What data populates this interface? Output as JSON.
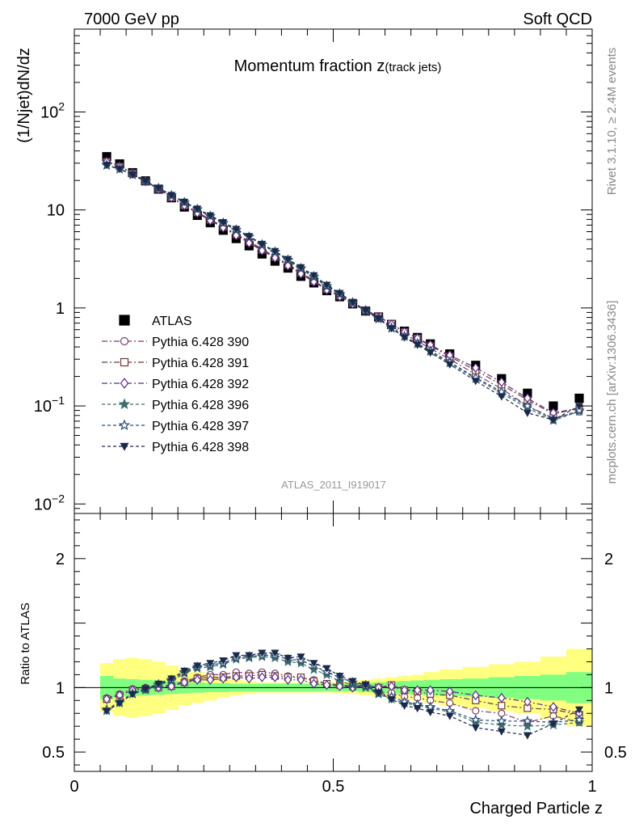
{
  "header": {
    "left": "7000 GeV pp",
    "right": "Soft QCD",
    "title": "Momentum fraction ",
    "title_var": "z",
    "title_sub": "(track jets)",
    "analysis_id": "ATLAS_2011_I919017",
    "rivet": "Rivet 3.1.10, ≥ 2.4M events",
    "mcplots": "mcplots.cern.ch [arXiv:1306.3436]"
  },
  "chart_data": [
    {
      "type": "scatter",
      "panel": "main",
      "ylabel": "(1/Njet)dN/dz",
      "yscale": "log",
      "ylim": [
        0.008,
        700
      ],
      "xlim": [
        0,
        1
      ],
      "y_ticks": [
        {
          "value": 0.01,
          "base": "10",
          "exp": "−2"
        },
        {
          "value": 0.1,
          "base": "10",
          "exp": "−1"
        },
        {
          "value": 1,
          "base": "1",
          "exp": ""
        },
        {
          "value": 10,
          "base": "10",
          "exp": ""
        },
        {
          "value": 100,
          "base": "10",
          "exp": "2"
        }
      ],
      "x": [
        0.0625,
        0.0875,
        0.1125,
        0.1375,
        0.1625,
        0.1875,
        0.2125,
        0.2375,
        0.2625,
        0.2875,
        0.3125,
        0.3375,
        0.3625,
        0.3875,
        0.4125,
        0.4375,
        0.4625,
        0.4875,
        0.5125,
        0.5375,
        0.5625,
        0.5875,
        0.6125,
        0.6375,
        0.6625,
        0.6875,
        0.725,
        0.775,
        0.825,
        0.875,
        0.925,
        0.975
      ],
      "legend_position": "middle-left",
      "series": [
        {
          "name": "ATLAS",
          "color": "#000000",
          "marker": "square-filled",
          "values": [
            35,
            29.5,
            24,
            19.8,
            16.3,
            13.3,
            10.7,
            8.8,
            7.4,
            6.2,
            5.1,
            4.3,
            3.55,
            3.0,
            2.55,
            2.1,
            1.8,
            1.5,
            1.3,
            1.1,
            0.93,
            0.81,
            0.68,
            0.58,
            0.5,
            0.43,
            0.34,
            0.26,
            0.19,
            0.135,
            0.1,
            0.12
          ]
        },
        {
          "name": "Pythia 6.428 390",
          "color": "#7a3f6e",
          "marker": "circle-open",
          "dash": "7,3,2,3",
          "values": [
            31.5,
            28,
            23.8,
            19.8,
            16.5,
            13.5,
            11.2,
            9.5,
            8.0,
            6.8,
            5.7,
            4.8,
            4.0,
            3.35,
            2.8,
            2.3,
            1.9,
            1.55,
            1.33,
            1.1,
            0.94,
            0.78,
            0.65,
            0.54,
            0.46,
            0.385,
            0.3,
            0.21,
            0.15,
            0.1,
            0.075,
            0.087
          ]
        },
        {
          "name": "Pythia 6.428 391",
          "color": "#6e3a3a",
          "marker": "square-open",
          "dash": "7,3,2,3",
          "values": [
            31,
            27.7,
            23.6,
            19.6,
            16.3,
            13.4,
            11.1,
            9.4,
            7.9,
            6.7,
            5.6,
            4.7,
            3.9,
            3.3,
            2.75,
            2.27,
            1.88,
            1.55,
            1.33,
            1.12,
            0.95,
            0.82,
            0.69,
            0.57,
            0.49,
            0.41,
            0.32,
            0.23,
            0.165,
            0.115,
            0.083,
            0.094
          ]
        },
        {
          "name": "Pythia 6.428 392",
          "color": "#5a2d8a",
          "marker": "diamond-open",
          "dash": "7,3,2,3",
          "values": [
            31,
            27.7,
            23.6,
            19.6,
            16.3,
            13.4,
            11.1,
            9.3,
            7.8,
            6.6,
            5.5,
            4.6,
            3.85,
            3.25,
            2.7,
            2.23,
            1.85,
            1.53,
            1.31,
            1.1,
            0.95,
            0.81,
            0.68,
            0.57,
            0.49,
            0.42,
            0.33,
            0.245,
            0.175,
            0.12,
            0.085,
            0.095
          ]
        },
        {
          "name": "Pythia 6.428 396",
          "color": "#3c6e6e",
          "marker": "star-filled",
          "dash": "4,3",
          "values": [
            28.5,
            26,
            22.8,
            19.5,
            16.6,
            14,
            11.9,
            10.1,
            8.6,
            7.3,
            6.2,
            5.3,
            4.4,
            3.7,
            3.05,
            2.5,
            2.05,
            1.65,
            1.37,
            1.12,
            0.93,
            0.77,
            0.62,
            0.51,
            0.43,
            0.36,
            0.275,
            0.19,
            0.135,
            0.095,
            0.071,
            0.088
          ]
        },
        {
          "name": "Pythia 6.428 397",
          "color": "#2d4a6e",
          "marker": "star-open",
          "dash": "4,3",
          "values": [
            28.8,
            26.2,
            22.9,
            19.6,
            16.7,
            14.1,
            12,
            10.2,
            8.7,
            7.4,
            6.3,
            5.35,
            4.45,
            3.75,
            3.1,
            2.55,
            2.1,
            1.68,
            1.4,
            1.14,
            0.94,
            0.78,
            0.63,
            0.515,
            0.435,
            0.365,
            0.28,
            0.195,
            0.14,
            0.1,
            0.073,
            0.09
          ]
        },
        {
          "name": "Pythia 6.428 398",
          "color": "#1a2a4a",
          "marker": "triangle-down-filled",
          "dash": "4,3",
          "values": [
            28.8,
            26.2,
            22.9,
            19.7,
            16.8,
            14.2,
            12.1,
            10.3,
            8.8,
            7.5,
            6.4,
            5.4,
            4.5,
            3.8,
            3.15,
            2.6,
            2.15,
            1.72,
            1.42,
            1.15,
            0.95,
            0.78,
            0.62,
            0.5,
            0.42,
            0.35,
            0.265,
            0.18,
            0.125,
            0.085,
            0.072,
            0.1
          ]
        }
      ]
    },
    {
      "type": "scatter",
      "panel": "ratio",
      "ylabel": "Ratio to ATLAS",
      "xlabel": "Charged Particle z",
      "ylim": [
        0.35,
        2.35
      ],
      "xlim": [
        0,
        1
      ],
      "y_ticks": [
        0.5,
        1,
        2
      ],
      "x_ticks": [
        {
          "value": 0,
          "label": "0"
        },
        {
          "value": 0.5,
          "label": "0.5"
        },
        {
          "value": 1,
          "label": "1"
        }
      ],
      "reference_line": 1,
      "band_green_halfwidth": [
        0.09,
        0.07,
        0.065,
        0.06,
        0.055,
        0.05,
        0.045,
        0.04,
        0.035,
        0.035,
        0.03,
        0.03,
        0.03,
        0.03,
        0.03,
        0.03,
        0.03,
        0.03,
        0.03,
        0.03,
        0.035,
        0.04,
        0.045,
        0.05,
        0.055,
        0.06,
        0.065,
        0.07,
        0.08,
        0.09,
        0.1,
        0.12
      ],
      "band_yellow_halfwidth": [
        0.19,
        0.22,
        0.23,
        0.22,
        0.2,
        0.17,
        0.14,
        0.12,
        0.1,
        0.08,
        0.06,
        0.05,
        0.04,
        0.04,
        0.04,
        0.04,
        0.04,
        0.04,
        0.045,
        0.05,
        0.06,
        0.07,
        0.08,
        0.09,
        0.1,
        0.12,
        0.14,
        0.16,
        0.18,
        0.2,
        0.24,
        0.3
      ],
      "series": [
        {
          "name": "Pythia 6.428 390",
          "color": "#7a3f6e",
          "marker": "circle-open",
          "dash": "7,3,2,3",
          "values": [
            0.92,
            0.95,
            0.99,
            1.0,
            1.01,
            1.02,
            1.05,
            1.08,
            1.1,
            1.1,
            1.12,
            1.11,
            1.12,
            1.11,
            1.09,
            1.08,
            1.06,
            1.03,
            1.02,
            1.0,
            1.01,
            0.96,
            0.96,
            0.93,
            0.92,
            0.9,
            0.88,
            0.82,
            0.8,
            0.73,
            0.78,
            0.73
          ]
        },
        {
          "name": "Pythia 6.428 391",
          "color": "#6e3a3a",
          "marker": "square-open",
          "dash": "7,3,2,3",
          "values": [
            0.91,
            0.94,
            0.98,
            0.99,
            1.0,
            1.01,
            1.04,
            1.07,
            1.08,
            1.08,
            1.09,
            1.09,
            1.1,
            1.09,
            1.08,
            1.08,
            1.05,
            1.03,
            1.02,
            1.01,
            1.02,
            1.0,
            1.02,
            0.98,
            0.97,
            0.95,
            0.94,
            0.9,
            0.86,
            0.84,
            0.83,
            0.79
          ]
        },
        {
          "name": "Pythia 6.428 392",
          "color": "#5a2d8a",
          "marker": "diamond-open",
          "dash": "7,3,2,3",
          "values": [
            0.91,
            0.94,
            0.98,
            0.99,
            1.0,
            1.01,
            1.04,
            1.06,
            1.06,
            1.07,
            1.08,
            1.07,
            1.08,
            1.08,
            1.06,
            1.06,
            1.03,
            1.02,
            1.01,
            1.0,
            1.02,
            1.0,
            1.01,
            0.98,
            0.98,
            0.98,
            0.97,
            0.94,
            0.92,
            0.89,
            0.85,
            0.8
          ]
        },
        {
          "name": "Pythia 6.428 396",
          "color": "#3c6e6e",
          "marker": "star-filled",
          "dash": "4,3",
          "values": [
            0.82,
            0.88,
            0.95,
            0.98,
            1.02,
            1.05,
            1.11,
            1.15,
            1.16,
            1.18,
            1.22,
            1.23,
            1.24,
            1.23,
            1.2,
            1.19,
            1.14,
            1.1,
            1.05,
            1.02,
            1.0,
            0.95,
            0.91,
            0.88,
            0.86,
            0.84,
            0.81,
            0.73,
            0.71,
            0.7,
            0.71,
            0.73
          ]
        },
        {
          "name": "Pythia 6.428 397",
          "color": "#2d4a6e",
          "marker": "star-open",
          "dash": "4,3",
          "values": [
            0.83,
            0.89,
            0.955,
            0.99,
            1.025,
            1.06,
            1.12,
            1.16,
            1.175,
            1.19,
            1.23,
            1.24,
            1.25,
            1.25,
            1.22,
            1.21,
            1.17,
            1.12,
            1.08,
            1.04,
            1.01,
            0.96,
            0.93,
            0.89,
            0.87,
            0.85,
            0.82,
            0.75,
            0.74,
            0.74,
            0.73,
            0.75
          ]
        },
        {
          "name": "Pythia 6.428 398",
          "color": "#1a2a4a",
          "marker": "triangle-down-filled",
          "dash": "4,3",
          "values": [
            0.82,
            0.88,
            0.95,
            0.99,
            1.03,
            1.07,
            1.13,
            1.17,
            1.19,
            1.21,
            1.25,
            1.25,
            1.27,
            1.27,
            1.23,
            1.24,
            1.19,
            1.15,
            1.09,
            1.05,
            1.02,
            0.96,
            0.91,
            0.86,
            0.84,
            0.81,
            0.78,
            0.69,
            0.66,
            0.63,
            0.72,
            0.83
          ]
        }
      ]
    }
  ]
}
